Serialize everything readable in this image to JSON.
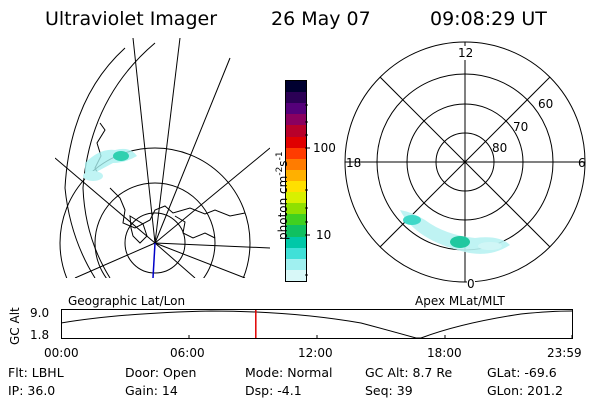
{
  "header": {
    "instrument": "Ultraviolet Imager",
    "date": "26 May 07",
    "time": "09:08:29 UT"
  },
  "colorbar": {
    "title": "photon cm",
    "title_sup1": "-2",
    "title_mid": "s",
    "title_sup2": "-1",
    "tick_labels": [
      "100",
      "10"
    ],
    "colors_top_to_bottom": [
      "#000030",
      "#2b0055",
      "#55007a",
      "#8a0060",
      "#b8002a",
      "#e00000",
      "#ff3c00",
      "#ff7c00",
      "#ffb000",
      "#ffe000",
      "#d8f000",
      "#90e000",
      "#40d020",
      "#10c060",
      "#00c8a8",
      "#40e0d8",
      "#a0f0f0",
      "#d8f8f8"
    ]
  },
  "left_panel": {
    "label": "Geographic Lat/Lon"
  },
  "right_panel": {
    "label": "Apex  MLat/MLT",
    "mlt_labels": {
      "top": "12",
      "left": "18",
      "right": "6",
      "bottom": "0"
    },
    "lat_labels": [
      "60",
      "70",
      "80"
    ]
  },
  "timeline": {
    "ylabel": "GC Alt",
    "ytick_top": "9.0",
    "ytick_bottom": "1.8",
    "x_tick_labels": [
      "00:00",
      "06:00",
      "12:00",
      "18:00",
      "23:59"
    ],
    "marker_time": "09:08:29",
    "marker_color": "#e00000"
  },
  "info": {
    "filter": "Flt:  LBHL",
    "ip": "IP:  36.0",
    "door": "Door:  Open",
    "gain": "Gain:  14",
    "mode": "Mode:  Normal",
    "dsp": "Dsp:    -4.1",
    "gc_alt": "GC Alt:  8.7 Re",
    "seq": "Seq:  39",
    "glat": "GLat:   -69.6",
    "glon": "GLon:  201.2"
  }
}
